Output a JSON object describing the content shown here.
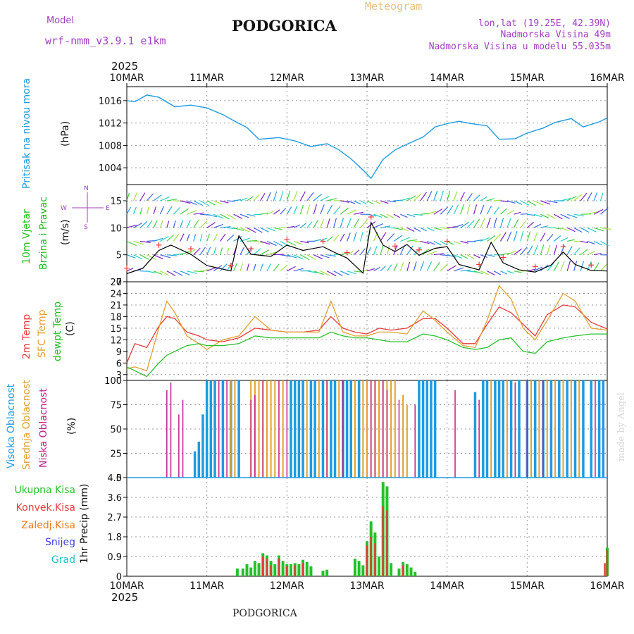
{
  "header": {
    "model_label": "Model",
    "model_name": "wrf-nmm_v3.9.1  e1km",
    "title": "PODGORICA",
    "meteogram_label": "Meteogram",
    "coords": "lon,lat (19.25E, 42.39N)",
    "altitude": "Nadmorska Visina 49m",
    "model_altitude": "Nadmorska Visina u modelu 55.035m",
    "year_top": "2025",
    "year_bottom": "2025",
    "footer": "PODGORICA",
    "watermark": "made by Angel"
  },
  "colors": {
    "pressure": "#1e9be0",
    "temp2m": "#e63c3c",
    "sfc": "#e0a030",
    "dewpt": "#27c02a",
    "high_cloud": "#1e9be0",
    "mid_cloud": "#e0a030",
    "low_cloud": "#c0208a",
    "total_precip": "#27c02a",
    "conv_precip": "#e63c3c",
    "frozen_precip": "#f07820",
    "snow": "#4040e0",
    "graupel": "#20c0c0",
    "wind_label": "#20c020",
    "compass": "#a040c0"
  },
  "axis": {
    "dates": [
      "10MAR",
      "11MAR",
      "12MAR",
      "13MAR",
      "14MAR",
      "15MAR",
      "16MAR"
    ]
  },
  "panels": {
    "pressure": {
      "label1": "Pritisak na nivou mora",
      "unit": "(hPa)"
    },
    "wind": {
      "label1": "10m Vjetar",
      "label2": "Brzina i Pravac",
      "unit": "(m/s)",
      "compass_n": "N",
      "compass_s": "S",
      "compass_w": "W",
      "compass_e": "E"
    },
    "temp": {
      "label1": "2m Temp",
      "label2": "SFC Temp",
      "label3": "dewpt Temp",
      "unit": "(C)"
    },
    "cloud": {
      "label1": "Visoka Oblacnost",
      "label2": "Srednja Oblacnost",
      "label3": "Niska Oblacnost",
      "unit": "(%)"
    },
    "precip": {
      "label1": "Ukupna Kisa",
      "label2": "Konvek.Kisa",
      "label3": "Zaledj.Kisa",
      "label4": "Snijeg",
      "label5": "Grad",
      "unit": "1hr Precip (mm)"
    }
  },
  "chart_data": [
    {
      "type": "line",
      "name": "pressure",
      "ylabel": "(hPa)",
      "ylim": [
        1001,
        1018.5
      ],
      "yticks": [
        1004,
        1008,
        1012,
        1016
      ],
      "x_days": [
        0,
        0.1,
        0.25,
        0.4,
        0.6,
        0.8,
        1.0,
        1.2,
        1.35,
        1.5,
        1.65,
        1.9,
        2.1,
        2.3,
        2.5,
        2.65,
        2.8,
        2.95,
        3.05,
        3.2,
        3.35,
        3.5,
        3.7,
        3.85,
        4.0,
        4.15,
        4.3,
        4.5,
        4.65,
        4.85,
        5.0,
        5.2,
        5.35,
        5.55,
        5.7,
        5.9,
        6.0
      ],
      "series": [
        {
          "values": [
            1016,
            1015.8,
            1017,
            1016.6,
            1014.9,
            1015.2,
            1014.7,
            1013.5,
            1012.3,
            1011.2,
            1009.1,
            1009.4,
            1008.8,
            1007.8,
            1008.3,
            1007.2,
            1005.6,
            1003.6,
            1002.1,
            1005.5,
            1007.2,
            1008.2,
            1009.5,
            1011.3,
            1011.9,
            1012.3,
            1011.9,
            1011.5,
            1009.1,
            1009.2,
            1010.2,
            1011.1,
            1012.1,
            1012.8,
            1011.3,
            1012.2,
            1012.9
          ]
        }
      ]
    },
    {
      "type": "line",
      "name": "wind",
      "ylabel": "(m/s)",
      "ylim": [
        0,
        18
      ],
      "yticks": [
        0,
        5,
        10,
        15
      ],
      "x_days": [
        0,
        0.2,
        0.4,
        0.55,
        0.8,
        1.0,
        1.3,
        1.4,
        1.55,
        1.8,
        2.0,
        2.2,
        2.45,
        2.6,
        2.75,
        2.95,
        3.05,
        3.2,
        3.35,
        3.5,
        3.65,
        3.85,
        4.0,
        4.15,
        4.4,
        4.55,
        4.7,
        4.9,
        5.1,
        5.3,
        5.45,
        5.6,
        5.8,
        6.0
      ],
      "series": [
        {
          "values": [
            1.5,
            2.5,
            5.8,
            6.8,
            5.1,
            3.0,
            2.0,
            8.5,
            5.1,
            4.7,
            6.8,
            5.8,
            6.5,
            5.4,
            4.4,
            1.6,
            11.0,
            6.8,
            5.6,
            6.9,
            4.9,
            6.2,
            6.5,
            3.2,
            2.2,
            7.3,
            3.5,
            2.2,
            1.8,
            3.1,
            5.5,
            3.2,
            2.1,
            2.0
          ]
        }
      ],
      "arrow_rows_ms": [
        2,
        5,
        7.5,
        10,
        12.5,
        15
      ]
    },
    {
      "type": "line",
      "name": "temperature",
      "ylabel": "(C)",
      "ylim": [
        1.5,
        27
      ],
      "yticks": [
        3,
        6,
        9,
        12,
        15,
        18,
        21,
        24,
        27
      ],
      "x_days": [
        0,
        0.1,
        0.25,
        0.4,
        0.5,
        0.6,
        0.75,
        0.9,
        1.0,
        1.2,
        1.4,
        1.6,
        1.8,
        2.0,
        2.2,
        2.4,
        2.55,
        2.7,
        2.85,
        3.0,
        3.15,
        3.3,
        3.5,
        3.7,
        3.85,
        4.0,
        4.2,
        4.35,
        4.5,
        4.65,
        4.8,
        4.95,
        5.1,
        5.25,
        5.45,
        5.6,
        5.8,
        6.0
      ],
      "series": [
        {
          "values": [
            6,
            11,
            10,
            15.5,
            18,
            17.5,
            14,
            13,
            12,
            11.5,
            12.5,
            15,
            14.5,
            14,
            14,
            14.5,
            18,
            15,
            14,
            13.5,
            15,
            14.5,
            15,
            17.5,
            17.5,
            15,
            11,
            11,
            16,
            20.5,
            19,
            16,
            13,
            18.5,
            21,
            20.5,
            16.5,
            14.8
          ]
        },
        {
          "values": [
            4.5,
            5,
            4,
            15,
            22,
            19,
            13,
            11,
            9.5,
            12,
            13,
            18,
            14.5,
            14,
            14,
            14,
            22,
            14,
            13,
            13,
            14,
            14,
            13.5,
            19.5,
            17,
            14,
            10.5,
            10,
            17,
            26,
            22.5,
            15,
            12,
            17,
            24,
            22,
            15,
            14.5
          ]
        },
        {
          "values": [
            5,
            4,
            2.5,
            6,
            8,
            9,
            10.5,
            11,
            10.5,
            10.5,
            11,
            13,
            12.5,
            12.5,
            12.5,
            12.5,
            14,
            13,
            12.5,
            12.5,
            12,
            11.5,
            11.5,
            13.5,
            13,
            12,
            10,
            9.5,
            10,
            12,
            12.5,
            9,
            8.5,
            11.5,
            12.5,
            13,
            13.5,
            13.5
          ]
        }
      ]
    },
    {
      "type": "bar",
      "name": "cloud",
      "ylabel": "(%)",
      "ylim": [
        0,
        100
      ],
      "yticks": [
        0,
        25,
        50,
        75,
        100
      ],
      "series": [
        {
          "values": [
            [
              0.85,
              27
            ],
            [
              0.9,
              37
            ],
            [
              0.95,
              65
            ],
            [
              1.0,
              100
            ],
            [
              1.05,
              100
            ],
            [
              1.1,
              100
            ],
            [
              1.2,
              100
            ],
            [
              1.3,
              100
            ],
            [
              1.4,
              100
            ],
            [
              2.05,
              100
            ],
            [
              2.1,
              100
            ],
            [
              2.15,
              100
            ],
            [
              2.2,
              100
            ],
            [
              2.3,
              100
            ],
            [
              2.35,
              100
            ],
            [
              2.45,
              100
            ],
            [
              2.55,
              100
            ],
            [
              2.6,
              100
            ],
            [
              2.7,
              100
            ],
            [
              2.75,
              100
            ],
            [
              2.8,
              100
            ],
            [
              2.9,
              100
            ],
            [
              3.65,
              100
            ],
            [
              3.7,
              100
            ],
            [
              3.75,
              100
            ],
            [
              3.8,
              100
            ],
            [
              3.85,
              100
            ],
            [
              4.35,
              88
            ],
            [
              4.45,
              100
            ],
            [
              4.5,
              100
            ],
            [
              4.6,
              100
            ],
            [
              4.65,
              100
            ],
            [
              4.7,
              100
            ],
            [
              4.8,
              100
            ],
            [
              4.9,
              100
            ],
            [
              5.0,
              100
            ],
            [
              5.1,
              100
            ],
            [
              5.2,
              100
            ],
            [
              5.3,
              100
            ],
            [
              5.4,
              100
            ],
            [
              5.5,
              100
            ],
            [
              5.6,
              100
            ],
            [
              5.7,
              100
            ],
            [
              5.8,
              100
            ],
            [
              5.9,
              100
            ],
            [
              5.95,
              100
            ]
          ]
        },
        {
          "values": [
            [
              1.3,
              100
            ],
            [
              1.35,
              100
            ],
            [
              1.55,
              100
            ],
            [
              1.6,
              100
            ],
            [
              1.65,
              100
            ],
            [
              1.7,
              100
            ],
            [
              1.75,
              100
            ],
            [
              1.8,
              100
            ],
            [
              1.85,
              100
            ],
            [
              1.95,
              100
            ],
            [
              2.25,
              100
            ],
            [
              2.4,
              100
            ],
            [
              2.5,
              100
            ],
            [
              2.65,
              100
            ],
            [
              2.85,
              100
            ],
            [
              2.95,
              100
            ],
            [
              3.0,
              100
            ],
            [
              3.05,
              100
            ],
            [
              3.1,
              100
            ],
            [
              3.15,
              100
            ],
            [
              3.2,
              100
            ],
            [
              3.25,
              100
            ],
            [
              3.3,
              100
            ],
            [
              3.35,
              100
            ],
            [
              3.45,
              85
            ],
            [
              3.5,
              75
            ],
            [
              4.55,
              100
            ],
            [
              4.75,
              100
            ],
            [
              5.05,
              100
            ],
            [
              5.15,
              100
            ],
            [
              5.25,
              100
            ],
            [
              5.35,
              100
            ],
            [
              5.45,
              100
            ],
            [
              5.55,
              100
            ],
            [
              5.65,
              100
            ]
          ]
        },
        {
          "values": [
            [
              0.5,
              90
            ],
            [
              0.55,
              98
            ],
            [
              0.65,
              65
            ],
            [
              0.7,
              80
            ],
            [
              1.15,
              100
            ],
            [
              1.25,
              100
            ],
            [
              1.55,
              80
            ],
            [
              1.6,
              85
            ],
            [
              1.7,
              100
            ],
            [
              1.9,
              100
            ],
            [
              2.0,
              100
            ],
            [
              2.5,
              100
            ],
            [
              2.7,
              100
            ],
            [
              3.05,
              100
            ],
            [
              3.1,
              100
            ],
            [
              3.2,
              100
            ],
            [
              3.25,
              90
            ],
            [
              3.4,
              80
            ],
            [
              3.6,
              75
            ],
            [
              4.1,
              90
            ],
            [
              4.4,
              80
            ],
            [
              4.85,
              98
            ],
            [
              5.0,
              100
            ],
            [
              5.2,
              100
            ],
            [
              5.85,
              100
            ]
          ]
        }
      ]
    },
    {
      "type": "bar",
      "name": "precip",
      "ylabel": "1hr Precip (mm)",
      "ylim": [
        0,
        4.5
      ],
      "yticks": [
        0,
        0.9,
        1.8,
        2.7,
        3.6,
        4.5
      ],
      "series": [
        {
          "values": [
            [
              1.38,
              0.35
            ],
            [
              1.45,
              0.35
            ],
            [
              1.5,
              0.55
            ],
            [
              1.55,
              0.4
            ],
            [
              1.6,
              0.7
            ],
            [
              1.65,
              0.6
            ],
            [
              1.7,
              1.05
            ],
            [
              1.75,
              0.95
            ],
            [
              1.8,
              0.7
            ],
            [
              1.85,
              0.55
            ],
            [
              1.9,
              0.95
            ],
            [
              1.95,
              0.7
            ],
            [
              2.0,
              0.55
            ],
            [
              2.05,
              0.55
            ],
            [
              2.1,
              0.6
            ],
            [
              2.15,
              0.55
            ],
            [
              2.2,
              0.75
            ],
            [
              2.25,
              0.65
            ],
            [
              2.3,
              0.45
            ],
            [
              2.45,
              0.25
            ],
            [
              2.5,
              0.3
            ],
            [
              2.85,
              0.8
            ],
            [
              2.9,
              0.7
            ],
            [
              2.95,
              0.5
            ],
            [
              3.0,
              1.6
            ],
            [
              3.05,
              2.5
            ],
            [
              3.1,
              2.0
            ],
            [
              3.15,
              0.9
            ],
            [
              3.2,
              4.3
            ],
            [
              3.25,
              4.1
            ],
            [
              3.3,
              0.6
            ],
            [
              3.4,
              0.35
            ],
            [
              3.45,
              0.65
            ],
            [
              3.5,
              0.55
            ],
            [
              3.55,
              0.4
            ],
            [
              3.6,
              0.2
            ],
            [
              6.0,
              1.3
            ]
          ]
        },
        {
          "values": [
            [
              1.7,
              0.9
            ],
            [
              1.75,
              0.8
            ],
            [
              1.8,
              0.5
            ],
            [
              1.9,
              0.8
            ],
            [
              2.0,
              0.45
            ],
            [
              2.1,
              0.5
            ],
            [
              2.2,
              0.6
            ],
            [
              3.0,
              1.4
            ],
            [
              3.05,
              1.8
            ],
            [
              3.1,
              1.5
            ],
            [
              3.2,
              3.2
            ],
            [
              3.25,
              3.0
            ],
            [
              3.45,
              0.5
            ],
            [
              5.97,
              0.6
            ],
            [
              6.0,
              1.2
            ]
          ]
        }
      ]
    }
  ]
}
